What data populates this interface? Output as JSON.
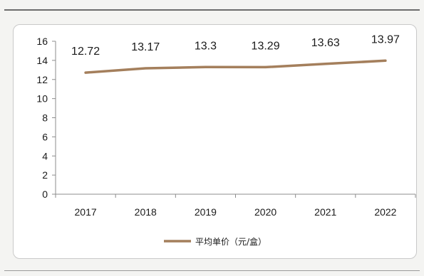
{
  "chart_data": {
    "type": "line",
    "x": [
      "2017",
      "2018",
      "2019",
      "2020",
      "2021",
      "2022"
    ],
    "series": [
      {
        "name": "平均单价（元/盒）",
        "values": [
          12.72,
          13.17,
          13.3,
          13.29,
          13.63,
          13.97
        ],
        "data_labels": [
          "12.72",
          "13.17",
          "13.3",
          "13.29",
          "13.63",
          "13.97"
        ],
        "color": "#a47f5c"
      }
    ],
    "yticks": [
      "0",
      "2",
      "4",
      "6",
      "8",
      "10",
      "12",
      "14",
      "16"
    ],
    "ylim": [
      0,
      16
    ],
    "legend_position": "bottom-center",
    "grid": false
  }
}
